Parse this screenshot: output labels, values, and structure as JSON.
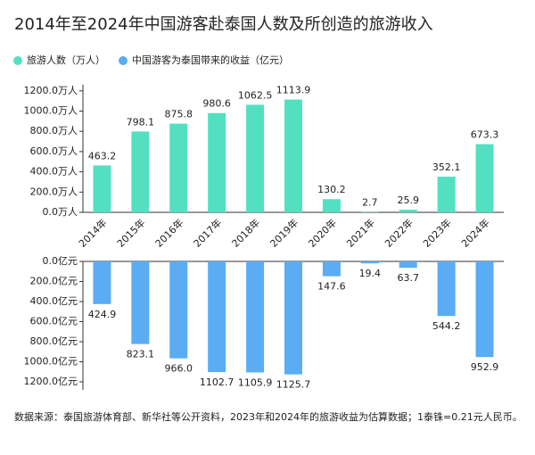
{
  "title": "2014年至2024年中国游客赴泰国人数及所创造的旅游收入",
  "note": "数据来源：泰国旅游体育部、新华社等公开资料，2023年和2024年的旅游收益为估算数据；1泰铢=0.21元人民币。",
  "chart_data": [
    {
      "type": "bar",
      "categories": [
        "2014年",
        "2015年",
        "2016年",
        "2017年",
        "2018年",
        "2019年",
        "2020年",
        "2021年",
        "2022年",
        "2023年",
        "2024年"
      ],
      "series": [
        {
          "name": "旅游人数（万人）",
          "color": "#52e0c1",
          "values": [
            463.2,
            798.1,
            875.8,
            980.6,
            1062.5,
            1113.9,
            130.2,
            2.7,
            25.9,
            352.1,
            673.3
          ]
        }
      ],
      "ylim": [
        0,
        1260
      ],
      "yticks": [
        {
          "value": 0,
          "label": "0.0万人"
        },
        {
          "value": 200,
          "label": "200.0万人"
        },
        {
          "value": 400,
          "label": "400.0万人"
        },
        {
          "value": 600,
          "label": "600.0万人"
        },
        {
          "value": 800,
          "label": "800.0万人"
        },
        {
          "value": 1000,
          "label": "1000.0万人"
        },
        {
          "value": 1200,
          "label": "1200.0万人"
        }
      ]
    },
    {
      "type": "bar",
      "inverted": true,
      "series": [
        {
          "name": "中国游客为泰国带来的收益（亿元）",
          "color": "#5aacf3",
          "values": [
            424.9,
            823.1,
            966,
            1102.7,
            1105.9,
            1125.7,
            147.6,
            19.4,
            63.7,
            544.2,
            952.9
          ],
          "value_labels": [
            "424.9",
            "823.1",
            "966.0",
            "1102.7",
            "1105.9",
            "1125.7",
            "147.6",
            "19.4",
            "63.7",
            "544.2",
            "952.9"
          ]
        }
      ],
      "ylim": [
        0,
        1280
      ],
      "yticks": [
        {
          "value": 0,
          "label": "0.0亿元"
        },
        {
          "value": 200,
          "label": "200.0亿元"
        },
        {
          "value": 400,
          "label": "400.0亿元"
        },
        {
          "value": 600,
          "label": "600.0亿元"
        },
        {
          "value": 800,
          "label": "800.0亿元"
        },
        {
          "value": 1000,
          "label": "1000.0亿元"
        },
        {
          "value": 1200,
          "label": "1200.0亿元"
        }
      ]
    }
  ]
}
